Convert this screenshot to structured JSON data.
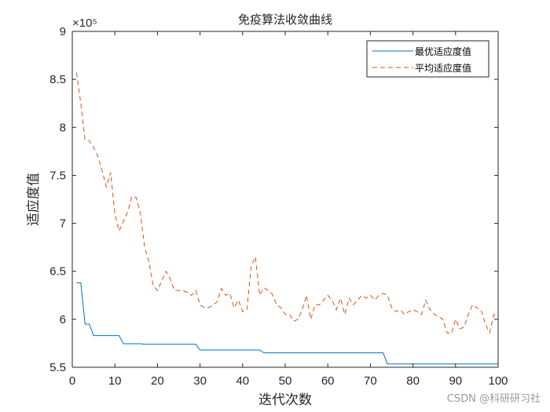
{
  "chart_data": {
    "type": "line",
    "title": "免疫算法收敛曲线",
    "xlabel": "迭代次数",
    "ylabel": "适应度值",
    "y_exponent_label": "×10⁵",
    "xlim": [
      0,
      100
    ],
    "ylim": [
      5.5,
      9
    ],
    "x_ticks": [
      0,
      10,
      20,
      30,
      40,
      50,
      60,
      70,
      80,
      90,
      100
    ],
    "y_ticks": [
      5.5,
      6,
      6.5,
      7,
      7.5,
      8,
      8.5,
      9
    ],
    "y_tick_labels": [
      "5.5",
      "6",
      "6.5",
      "7",
      "7.5",
      "8",
      "8.5",
      "9"
    ],
    "legend_position": "top-right",
    "series": [
      {
        "name": "最优适应度值",
        "color": "#0072BD",
        "style": "solid",
        "x": [
          1,
          2,
          3,
          4,
          5,
          6,
          7,
          8,
          9,
          10,
          11,
          12,
          13,
          14,
          15,
          16,
          17,
          18,
          19,
          20,
          21,
          22,
          23,
          24,
          25,
          26,
          27,
          28,
          29,
          30,
          31,
          32,
          33,
          34,
          35,
          36,
          37,
          38,
          39,
          40,
          41,
          42,
          43,
          44,
          45,
          46,
          47,
          48,
          49,
          50,
          51,
          52,
          53,
          54,
          55,
          56,
          57,
          58,
          59,
          60,
          61,
          62,
          63,
          64,
          65,
          66,
          67,
          68,
          69,
          70,
          71,
          72,
          73,
          74,
          75,
          76,
          77,
          78,
          79,
          80,
          81,
          82,
          83,
          84,
          85,
          86,
          87,
          88,
          89,
          90,
          91,
          92,
          93,
          94,
          95,
          96,
          97,
          98,
          99,
          100
        ],
        "values": [
          6.38,
          6.38,
          5.95,
          5.95,
          5.83,
          5.83,
          5.83,
          5.83,
          5.83,
          5.83,
          5.83,
          5.745,
          5.745,
          5.745,
          5.745,
          5.745,
          5.74,
          5.74,
          5.74,
          5.74,
          5.74,
          5.74,
          5.74,
          5.74,
          5.74,
          5.74,
          5.74,
          5.74,
          5.74,
          5.68,
          5.68,
          5.68,
          5.68,
          5.68,
          5.68,
          5.68,
          5.68,
          5.68,
          5.68,
          5.68,
          5.68,
          5.68,
          5.68,
          5.68,
          5.65,
          5.65,
          5.65,
          5.65,
          5.65,
          5.65,
          5.65,
          5.65,
          5.65,
          5.65,
          5.65,
          5.65,
          5.65,
          5.65,
          5.65,
          5.65,
          5.65,
          5.65,
          5.65,
          5.65,
          5.65,
          5.65,
          5.65,
          5.65,
          5.65,
          5.65,
          5.65,
          5.65,
          5.65,
          5.535,
          5.535,
          5.535,
          5.535,
          5.535,
          5.535,
          5.535,
          5.535,
          5.535,
          5.535,
          5.535,
          5.535,
          5.535,
          5.535,
          5.535,
          5.535,
          5.535,
          5.535,
          5.535,
          5.535,
          5.535,
          5.535,
          5.535,
          5.535,
          5.535,
          5.535,
          5.535
        ]
      },
      {
        "name": "平均适应度值",
        "color": "#D95319",
        "style": "dashed",
        "x": [
          1,
          2,
          3,
          4,
          5,
          6,
          7,
          8,
          9,
          10,
          11,
          12,
          13,
          14,
          15,
          16,
          17,
          18,
          19,
          20,
          21,
          22,
          23,
          24,
          25,
          26,
          27,
          28,
          29,
          30,
          31,
          32,
          33,
          34,
          35,
          36,
          37,
          38,
          39,
          40,
          41,
          42,
          43,
          44,
          45,
          46,
          47,
          48,
          49,
          50,
          51,
          52,
          53,
          54,
          55,
          56,
          57,
          58,
          59,
          60,
          61,
          62,
          63,
          64,
          65,
          66,
          67,
          68,
          69,
          70,
          71,
          72,
          73,
          74,
          75,
          76,
          77,
          78,
          79,
          80,
          81,
          82,
          83,
          84,
          85,
          86,
          87,
          88,
          89,
          90,
          91,
          92,
          93,
          94,
          95,
          96,
          97,
          98,
          99,
          100
        ],
        "values": [
          8.57,
          8.25,
          7.87,
          7.86,
          7.79,
          7.7,
          7.55,
          7.38,
          7.53,
          7.1,
          6.92,
          7.02,
          7.12,
          7.28,
          7.27,
          7.1,
          6.75,
          6.6,
          6.35,
          6.3,
          6.4,
          6.5,
          6.42,
          6.3,
          6.3,
          6.3,
          6.28,
          6.25,
          6.3,
          6.15,
          6.12,
          6.12,
          6.15,
          6.18,
          6.32,
          6.25,
          6.27,
          6.12,
          6.2,
          6.08,
          6.1,
          6.55,
          6.65,
          6.25,
          6.33,
          6.3,
          6.26,
          6.15,
          6.12,
          6.05,
          6.05,
          5.98,
          6.0,
          6.1,
          6.25,
          6.0,
          6.15,
          6.15,
          6.2,
          6.25,
          6.2,
          6.1,
          6.22,
          6.05,
          6.22,
          6.15,
          6.2,
          6.25,
          6.22,
          6.25,
          6.2,
          6.25,
          6.27,
          6.25,
          6.12,
          6.08,
          6.1,
          6.05,
          6.08,
          6.1,
          6.08,
          6.05,
          6.2,
          6.1,
          6.05,
          6.03,
          6.0,
          5.86,
          5.85,
          6.0,
          5.9,
          5.92,
          6.05,
          6.15,
          6.12,
          6.1,
          5.95,
          5.86,
          6.05,
          6.03
        ]
      }
    ]
  },
  "watermark": "CSDN @科研研习社"
}
